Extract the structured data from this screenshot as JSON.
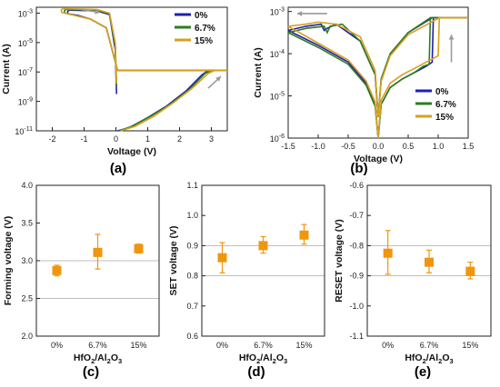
{
  "chart_data": [
    {
      "panel_label": "(a)",
      "type": "line",
      "xlabel": "Voltage (V)",
      "ylabel": "Current (A)",
      "xlim": [
        -2.5,
        3.5
      ],
      "ylim_log10": [
        -11,
        -2.6
      ],
      "y_scale": "log",
      "x_ticks": [
        "-2",
        "-1",
        "0",
        "1",
        "2",
        "3"
      ],
      "y_ticks": [
        {
          "b": "10",
          "e": "-11"
        },
        {
          "b": "10",
          "e": "-9"
        },
        {
          "b": "10",
          "e": "-7"
        },
        {
          "b": "10",
          "e": "-5"
        },
        {
          "b": "10",
          "e": "-3"
        }
      ],
      "legend_placement": "top-right",
      "colors": [
        "#1f1fb4",
        "#2e7d1e",
        "#d8a020"
      ],
      "series": [
        {
          "name": "0%",
          "color": "#1f1fb4",
          "curves": [
            {
              "x": [
                0.05,
                0.4,
                1.0,
                1.6,
                2.2,
                2.7,
                2.9,
                3.5
              ],
              "y": [
                -11,
                -10.8,
                -10.1,
                -9.3,
                -8.3,
                -7.2,
                -6.9,
                -6.9
              ]
            },
            {
              "x": [
                3.5,
                0.1,
                0.05,
                -0.3,
                -0.8,
                -1.2,
                -1.5,
                -1.52,
                -1.48
              ],
              "y": [
                -6.9,
                -6.9,
                -6.9,
                -4.0,
                -3.4,
                -3.15,
                -3.05,
                -2.9,
                -2.8
              ]
            },
            {
              "x": [
                -1.48,
                -0.6,
                -0.2,
                -0.02,
                0.02
              ],
              "y": [
                -2.8,
                -2.85,
                -3.1,
                -5.5,
                -8.5
              ]
            }
          ]
        },
        {
          "name": "6.7%",
          "color": "#2e7d1e",
          "curves": [
            {
              "x": [
                0.1,
                0.5,
                1.1,
                1.7,
                2.3,
                2.8,
                3.0,
                3.5
              ],
              "y": [
                -11,
                -10.7,
                -10.0,
                -9.2,
                -8.2,
                -7.1,
                -6.9,
                -6.9
              ]
            },
            {
              "x": [
                3.5,
                0.1,
                0.05,
                -0.3,
                -0.8,
                -1.3,
                -1.6,
                -1.62,
                -1.58
              ],
              "y": [
                -6.9,
                -6.9,
                -6.9,
                -4.0,
                -3.4,
                -3.15,
                -3.0,
                -2.85,
                -2.75
              ]
            },
            {
              "x": [
                -1.58,
                -0.6,
                -0.2,
                -0.02,
                0.02
              ],
              "y": [
                -2.75,
                -2.8,
                -3.05,
                -5.2,
                -8.0
              ]
            }
          ]
        },
        {
          "name": "15%",
          "color": "#d8a020",
          "curves": [
            {
              "x": [
                0.15,
                0.6,
                1.2,
                1.8,
                2.4,
                2.9,
                3.1,
                3.5
              ],
              "y": [
                -11,
                -10.7,
                -10.0,
                -9.1,
                -8.1,
                -7.1,
                -6.9,
                -6.9
              ]
            },
            {
              "x": [
                3.5,
                0.1,
                0.05,
                -0.3,
                -0.8,
                -1.4,
                -1.7,
                -1.72,
                -1.68
              ],
              "y": [
                -6.9,
                -6.9,
                -6.9,
                -4.0,
                -3.4,
                -3.1,
                -2.95,
                -2.8,
                -2.7
              ]
            },
            {
              "x": [
                -1.68,
                -0.6,
                -0.2,
                -0.02,
                0.02
              ],
              "y": [
                -2.7,
                -2.75,
                -3.0,
                -5.0,
                -7.8
              ]
            }
          ]
        }
      ]
    },
    {
      "panel_label": "(b)",
      "type": "line",
      "xlabel": "Voltage (V)",
      "ylabel": "Current (A)",
      "xlim": [
        -1.5,
        1.5
      ],
      "ylim_log10": [
        -6,
        -2.9
      ],
      "y_scale": "log",
      "x_ticks": [
        "-1.5",
        "-1.0",
        "-0.5",
        "0.0",
        "0.5",
        "1.0",
        "1.5"
      ],
      "y_ticks": [
        {
          "b": "10",
          "e": "-6"
        },
        {
          "b": "10",
          "e": "-5"
        },
        {
          "b": "10",
          "e": "-4"
        },
        {
          "b": "10",
          "e": "-3"
        }
      ],
      "legend_placement": "bottom-right",
      "series": [
        {
          "name": "0%",
          "color": "#1f1fb4",
          "curves": [
            {
              "x": [
                0.0,
                0.05,
                0.2,
                0.4,
                0.6,
                0.8,
                0.9,
                0.92,
                1.5
              ],
              "y": [
                -6,
                -5.2,
                -4.8,
                -4.6,
                -4.45,
                -4.3,
                -4.2,
                -3.15,
                -3.15
              ]
            },
            {
              "x": [
                1.5,
                0.9,
                0.5,
                0.2,
                0.05,
                0.0
              ],
              "y": [
                -3.15,
                -3.15,
                -3.5,
                -4.0,
                -4.6,
                -5.5
              ]
            },
            {
              "x": [
                0.0,
                -0.05,
                -0.3,
                -0.7,
                -0.85,
                -0.9,
                -0.95,
                -1.2,
                -1.5
              ],
              "y": [
                -5.5,
                -4.5,
                -3.7,
                -3.3,
                -3.4,
                -3.45,
                -3.3,
                -3.35,
                -3.45
              ]
            },
            {
              "x": [
                -1.5,
                -1.0,
                -0.5,
                -0.2,
                -0.05,
                0.0
              ],
              "y": [
                -3.45,
                -3.8,
                -4.2,
                -4.7,
                -5.2,
                -6
              ]
            }
          ]
        },
        {
          "name": "6.7%",
          "color": "#2e7d1e",
          "curves": [
            {
              "x": [
                0.0,
                0.05,
                0.2,
                0.4,
                0.6,
                0.75,
                0.85,
                0.87,
                1.5
              ],
              "y": [
                -6,
                -5.2,
                -4.8,
                -4.6,
                -4.45,
                -4.3,
                -4.25,
                -3.15,
                -3.15
              ]
            },
            {
              "x": [
                1.5,
                0.87,
                0.5,
                0.2,
                0.05,
                0.0
              ],
              "y": [
                -3.15,
                -3.15,
                -3.5,
                -4.0,
                -4.6,
                -5.5
              ]
            },
            {
              "x": [
                0.0,
                -0.05,
                -0.3,
                -0.6,
                -0.8,
                -0.85,
                -0.9,
                -1.2,
                -1.5
              ],
              "y": [
                -5.5,
                -4.5,
                -3.7,
                -3.3,
                -3.35,
                -3.5,
                -3.35,
                -3.4,
                -3.5
              ]
            },
            {
              "x": [
                -1.5,
                -1.0,
                -0.5,
                -0.2,
                -0.05,
                0.0
              ],
              "y": [
                -3.5,
                -3.85,
                -4.25,
                -4.75,
                -5.25,
                -6
              ]
            }
          ]
        },
        {
          "name": "15%",
          "color": "#d8a020",
          "curves": [
            {
              "x": [
                0.0,
                0.05,
                0.2,
                0.4,
                0.6,
                0.8,
                1.0,
                1.02,
                1.5
              ],
              "y": [
                -6,
                -5.1,
                -4.7,
                -4.5,
                -4.35,
                -4.2,
                -4.05,
                -3.15,
                -3.15
              ]
            },
            {
              "x": [
                1.5,
                1.02,
                0.5,
                0.2,
                0.05,
                0.0
              ],
              "y": [
                -3.15,
                -3.15,
                -3.55,
                -4.05,
                -4.65,
                -5.5
              ]
            },
            {
              "x": [
                0.0,
                -0.05,
                -0.3,
                -0.7,
                -1.0,
                -1.2,
                -1.5
              ],
              "y": [
                -5.5,
                -4.4,
                -3.6,
                -3.3,
                -3.25,
                -3.3,
                -3.35
              ]
            },
            {
              "x": [
                -1.5,
                -1.0,
                -0.5,
                -0.2,
                -0.05,
                0.0
              ],
              "y": [
                -3.35,
                -3.75,
                -4.15,
                -4.65,
                -5.15,
                -6
              ]
            }
          ]
        }
      ]
    },
    {
      "panel_label": "(c)",
      "type": "scatter",
      "ylabel": "Forming voltage (V)",
      "xlabel": {
        "pre": "HfO",
        "sub1": "2",
        "mid": "/Al",
        "sub2": "2",
        "mid2": "O",
        "sub3": "3"
      },
      "categories": [
        "0%",
        "6.7%",
        "15%"
      ],
      "values": [
        2.87,
        3.11,
        3.16
      ],
      "err_low": [
        0.07,
        0.22,
        0.06
      ],
      "err_high": [
        0.07,
        0.24,
        0.06
      ],
      "ylim": [
        2.0,
        4.0
      ],
      "y_ticks": [
        "2.0",
        "2.5",
        "3.0",
        "3.5",
        "4.0"
      ],
      "ref_lines": [
        2.5,
        3.0
      ],
      "color": "#f0960e"
    },
    {
      "panel_label": "(d)",
      "type": "scatter",
      "ylabel": "SET voltage (V)",
      "xlabel": {
        "pre": "HfO",
        "sub1": "2",
        "mid": "/Al",
        "sub2": "2",
        "mid2": "O",
        "sub3": "3"
      },
      "categories": [
        "0%",
        "6.7%",
        "15%"
      ],
      "values": [
        0.86,
        0.9,
        0.935
      ],
      "err_low": [
        0.05,
        0.025,
        0.03
      ],
      "err_high": [
        0.05,
        0.03,
        0.035
      ],
      "ylim": [
        0.6,
        1.1
      ],
      "y_ticks": [
        "0.6",
        "0.7",
        "0.8",
        "0.9",
        "1.0",
        "1.1"
      ],
      "ref_lines": [
        0.8,
        0.9
      ],
      "color": "#f0960e"
    },
    {
      "panel_label": "(e)",
      "type": "scatter",
      "ylabel": "RESET voltage (V)",
      "xlabel": {
        "pre": "HfO",
        "sub1": "2",
        "mid": "/Al",
        "sub2": "2",
        "mid2": "O",
        "sub3": "3"
      },
      "categories": [
        "0%",
        "6.7%",
        "15%"
      ],
      "values": [
        -0.825,
        -0.855,
        -0.885
      ],
      "err_low": [
        0.07,
        0.035,
        0.025
      ],
      "err_high": [
        0.075,
        0.04,
        0.03
      ],
      "ylim": [
        -1.1,
        -0.6
      ],
      "y_ticks": [
        "-0.6",
        "-0.7",
        "-0.8",
        "-0.9",
        "-1.0",
        "-1.1"
      ],
      "ref_lines": [
        -0.9,
        -0.8
      ],
      "color": "#f0960e"
    }
  ]
}
